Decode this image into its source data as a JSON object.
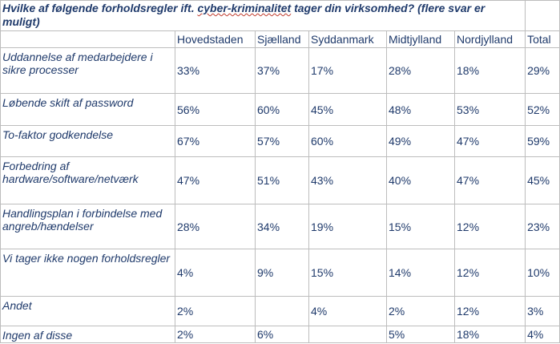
{
  "question": {
    "prefix": "Hvilke af følgende forholdsregler ift. ",
    "spellcheck_word": "cyber-kriminalitet",
    "suffix": " tager din virksomhed? (flere svar er muligt)"
  },
  "columns": [
    "Hovedstaden",
    "Sjælland",
    "Syddanmark",
    "Midtjylland",
    "Nordjylland",
    "Total"
  ],
  "rows": [
    {
      "label": "Uddannelse af medarbejdere i sikre processer",
      "values": [
        "33%",
        "37%",
        "17%",
        "28%",
        "18%",
        "29%"
      ]
    },
    {
      "label": "Løbende skift af password",
      "values": [
        "56%",
        "60%",
        "45%",
        "48%",
        "53%",
        "52%"
      ]
    },
    {
      "label": "To-faktor godkendelse",
      "values": [
        "67%",
        "57%",
        "60%",
        "49%",
        "47%",
        "59%"
      ]
    },
    {
      "label": "Forbedring af hardware/software/netværk",
      "values": [
        "47%",
        "51%",
        "43%",
        "40%",
        "47%",
        "45%"
      ]
    },
    {
      "label": "Handlingsplan i forbindelse med angreb/hændelser",
      "values": [
        "28%",
        "34%",
        "19%",
        "15%",
        "12%",
        "23%"
      ]
    },
    {
      "label": "Vi tager ikke nogen forholdsregler",
      "values": [
        "4%",
        "9%",
        "15%",
        "14%",
        "12%",
        "10%"
      ]
    },
    {
      "label": "Andet",
      "values": [
        "2%",
        "",
        "4%",
        "2%",
        "12%",
        "3%"
      ]
    },
    {
      "label": "Ingen af disse",
      "values": [
        "2%",
        "6%",
        "",
        "5%",
        "18%",
        "4%"
      ]
    }
  ]
}
